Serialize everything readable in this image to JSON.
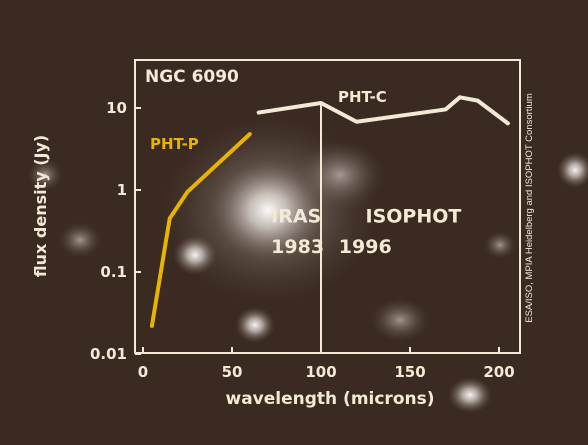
{
  "chart_data": {
    "type": "line",
    "title": "NGC 6090",
    "xlabel": "wavelength (microns)",
    "ylabel": "flux density (Jy)",
    "x_scale": "linear",
    "y_scale": "log",
    "xlim": [
      0,
      210
    ],
    "ylim": [
      0.01,
      20
    ],
    "xticks": [
      0,
      50,
      100,
      150,
      200
    ],
    "xtick_labels": [
      "0",
      "50",
      "100",
      "150",
      "200"
    ],
    "yticks": [
      0.01,
      0.1,
      1,
      10
    ],
    "ytick_labels": [
      "0.01",
      "0.1",
      "1",
      "10"
    ],
    "grid": false,
    "series": [
      {
        "name": "PHT-P",
        "color": "#e8b400",
        "x": [
          5,
          15,
          25,
          60
        ],
        "y": [
          0.022,
          0.45,
          0.95,
          4.8
        ]
      },
      {
        "name": "PHT-C",
        "color": "#f3ead5",
        "x": [
          65,
          100,
          120,
          170,
          178,
          188,
          205
        ],
        "y": [
          8.8,
          11.5,
          6.8,
          9.6,
          13.5,
          12.3,
          6.5
        ]
      }
    ],
    "annotations": [
      {
        "text": "IRAS",
        "x": 72,
        "y": 0.4
      },
      {
        "text": "1983",
        "x": 72,
        "y": 0.17
      },
      {
        "text": "ISOPHOT",
        "x": 125,
        "y": 0.4
      },
      {
        "text": "1996",
        "x": 110,
        "y": 0.17
      }
    ],
    "divider_x": 100,
    "credit": "ESA/ISO, MPIA Heidelberg and ISOPHOT Consortium",
    "frame_color": "#f3ead5",
    "background_color": "#3a2a22"
  }
}
